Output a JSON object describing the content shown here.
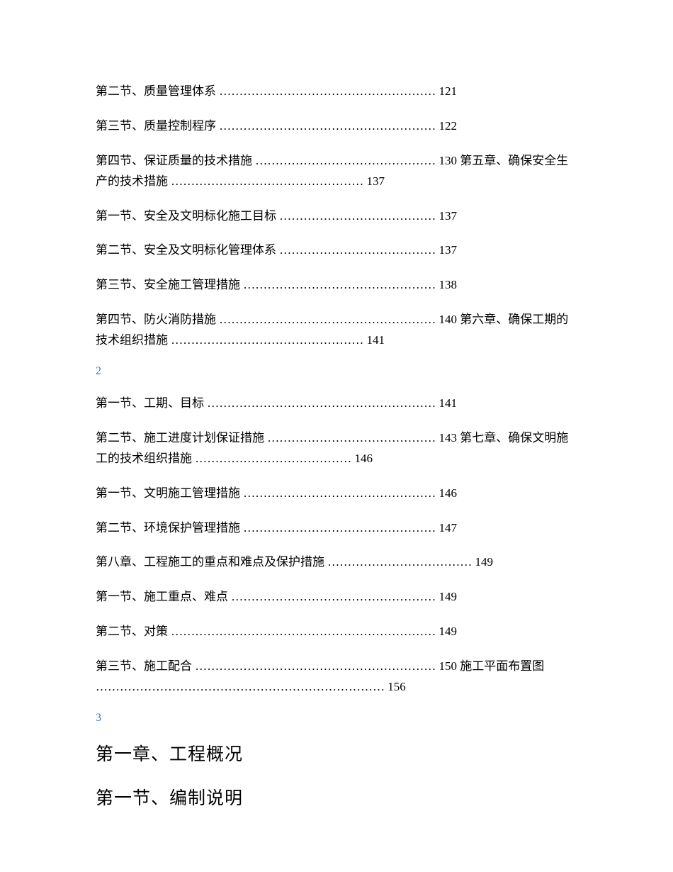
{
  "entries": [
    {
      "text": "第二节、质量管理体系 ……………………………………………… 121"
    },
    {
      "text": "第三节、质量控制程序 ……………………………………………… 122"
    },
    {
      "text": "第四节、保证质量的技术措施 ……………………………………… 130 第五章、确保安全生产的技术措施 ………………………………………… 137"
    },
    {
      "text": "第一节、安全及文明标化施工目标 ………………………………… 137"
    },
    {
      "text": "第二节、安全及文明标化管理体系 ………………………………… 137"
    },
    {
      "text": "第三节、安全施工管理措施 ………………………………………… 138"
    },
    {
      "text": "第四节、防火消防措施 ……………………………………………… 140 第六章、确保工期的技术组织措施 ………………………………………… 141"
    }
  ],
  "marker1": "2",
  "entries2": [
    {
      "text": "第一节、工期、目标 ………………………………………………… 141"
    },
    {
      "text": "第二节、施工进度计划保证措施 …………………………………… 143 第七章、确保文明施工的技术组织措施 ………………………………… 146"
    },
    {
      "text": "第一节、文明施工管理措施 ………………………………………… 146"
    },
    {
      "text": "第二节、环境保护管理措施 ………………………………………… 147"
    },
    {
      "text": "第八章、工程施工的重点和难点及保护措施 ……………………………… 149"
    },
    {
      "text": "第一节、施工重点、难点 …………………………………………… 149"
    },
    {
      "text": "第二节、对策 ………………………………………………………… 149"
    },
    {
      "text": "第三节、施工配合 …………………………………………………… 150 施工平面布置图 ……………………………………………………………… 156"
    }
  ],
  "marker2": "3",
  "heading1": "第一章、工程概况",
  "heading2": "第一节、编制说明"
}
